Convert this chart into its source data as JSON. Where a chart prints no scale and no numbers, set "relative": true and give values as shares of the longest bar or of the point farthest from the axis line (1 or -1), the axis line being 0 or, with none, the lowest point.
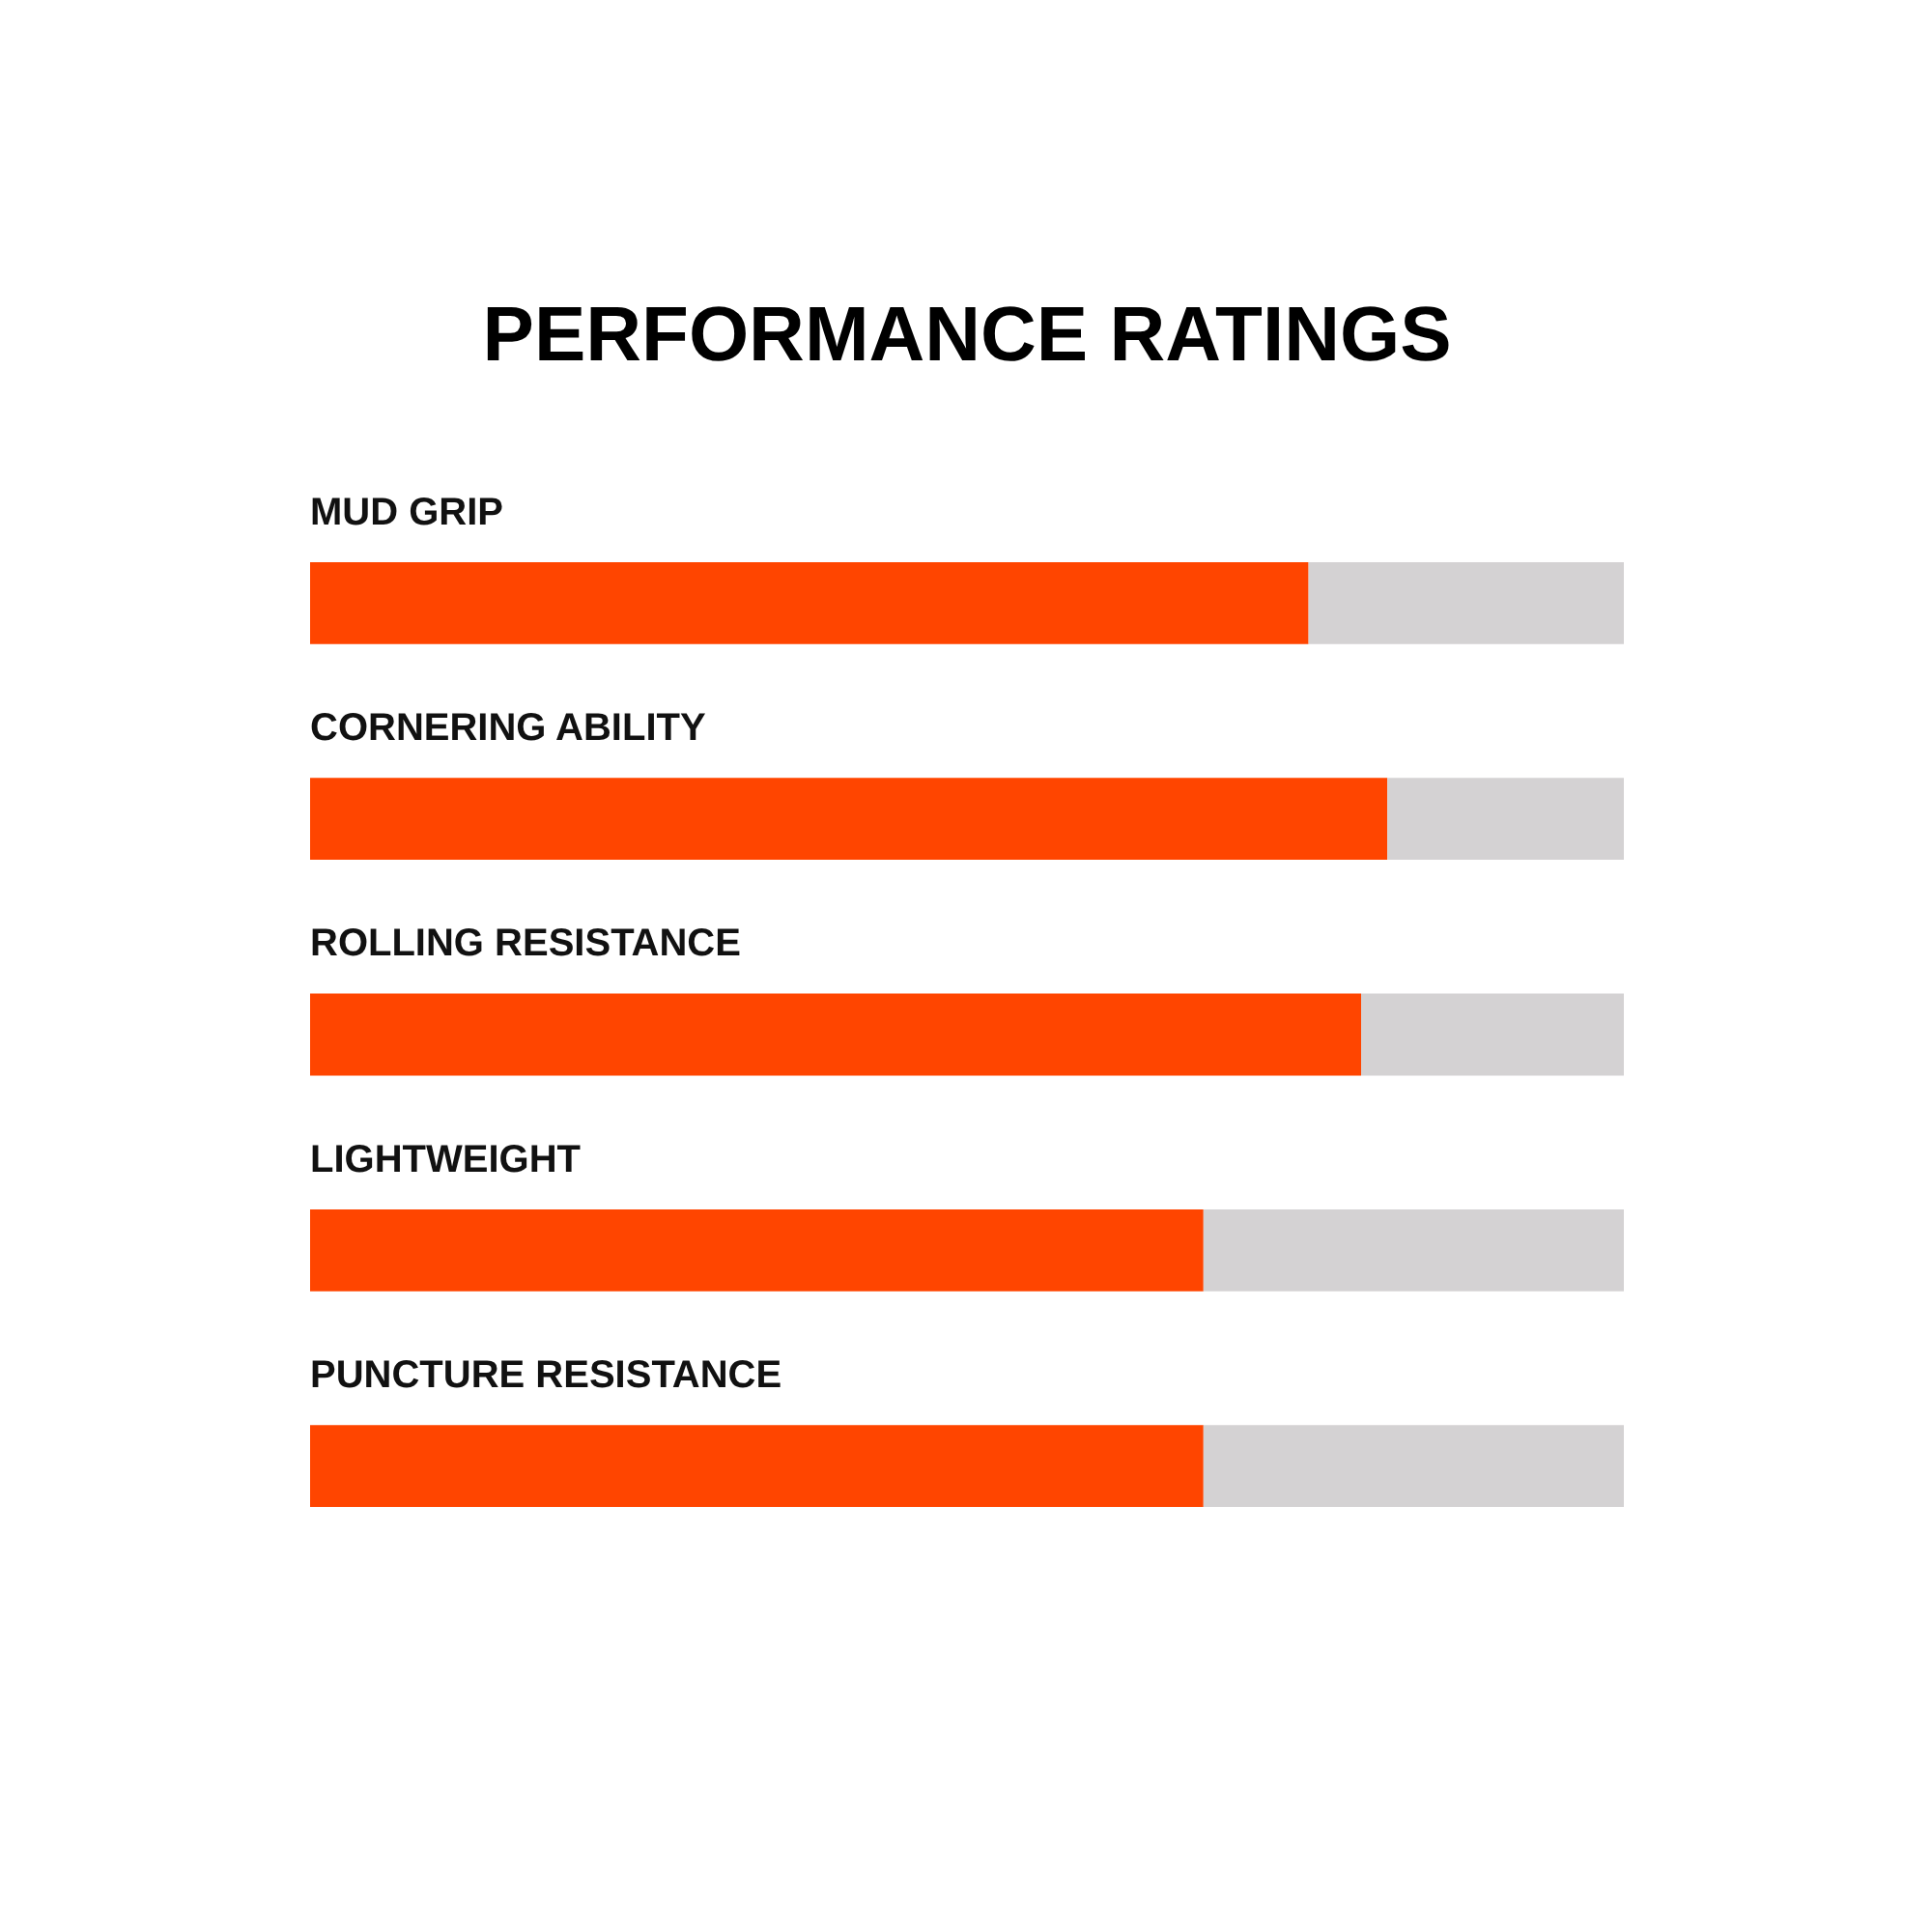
{
  "chart_data": {
    "type": "bar",
    "title": "PERFORMANCE RATINGS",
    "orientation": "horizontal",
    "stacked": true,
    "relative": true,
    "categories": [
      "MUD GRIP",
      "CORNERING ABILITY",
      "ROLLING RESISTANCE",
      "LIGHTWEIGHT",
      "PUNCTURE RESISTANCE"
    ],
    "series": [
      {
        "color": "#ff4500",
        "values": [
          0.76,
          0.82,
          0.8,
          0.68,
          0.68
        ]
      },
      {
        "color": "#d4d2d3",
        "values": [
          0.24,
          0.18,
          0.2,
          0.32,
          0.32
        ]
      }
    ]
  }
}
